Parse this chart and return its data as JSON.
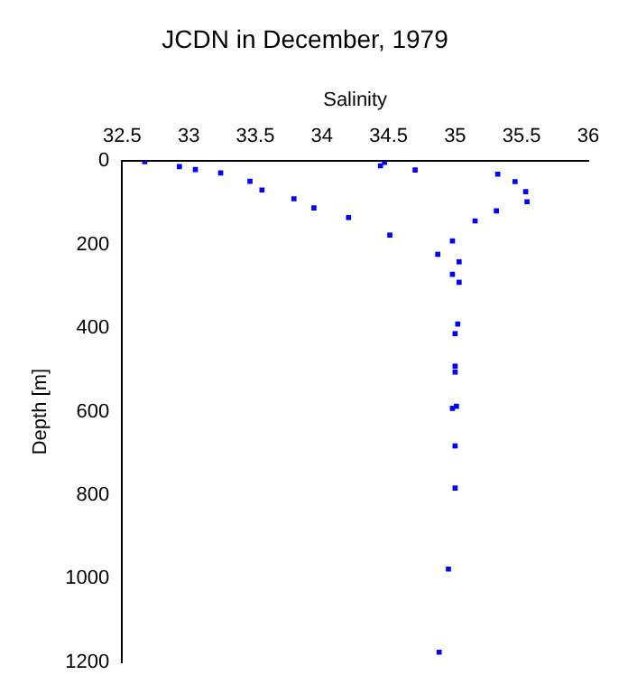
{
  "chart_data": {
    "type": "scatter",
    "title": "JCDN in December, 1979",
    "xlabel": "Salinity",
    "ylabel": "Depth [m]",
    "x": [
      32.67,
      32.93,
      33.05,
      33.24,
      33.46,
      33.55,
      33.79,
      33.94,
      34.2,
      34.51,
      34.44,
      34.47,
      34.7,
      34.98,
      34.87,
      35.03,
      34.98,
      35.03,
      35.15,
      35.31,
      35.32,
      35.45,
      35.53,
      35.54,
      35.02,
      35.0,
      35.0,
      35.0,
      35.01,
      34.98,
      35.0,
      35.0,
      34.95,
      34.88
    ],
    "series": [
      {
        "color": "#0000ff",
        "values": [
          1,
          13,
          20,
          28,
          48,
          69,
          90,
          112,
          135,
          177,
          11,
          3,
          21,
          191,
          223,
          241,
          271,
          290,
          143,
          119,
          31,
          49,
          73,
          97,
          390,
          413,
          491,
          505,
          587,
          592,
          682,
          783,
          977,
          1176
        ]
      }
    ],
    "xlim": [
      32.5,
      36
    ],
    "xticks": [
      32.5,
      33,
      33.5,
      34,
      34.5,
      35,
      35.5,
      36
    ],
    "ylim": [
      1200,
      0
    ],
    "yticks": [
      0,
      200,
      400,
      600,
      800,
      1000,
      1200
    ],
    "grid": false,
    "legend": false,
    "marker": "square"
  }
}
